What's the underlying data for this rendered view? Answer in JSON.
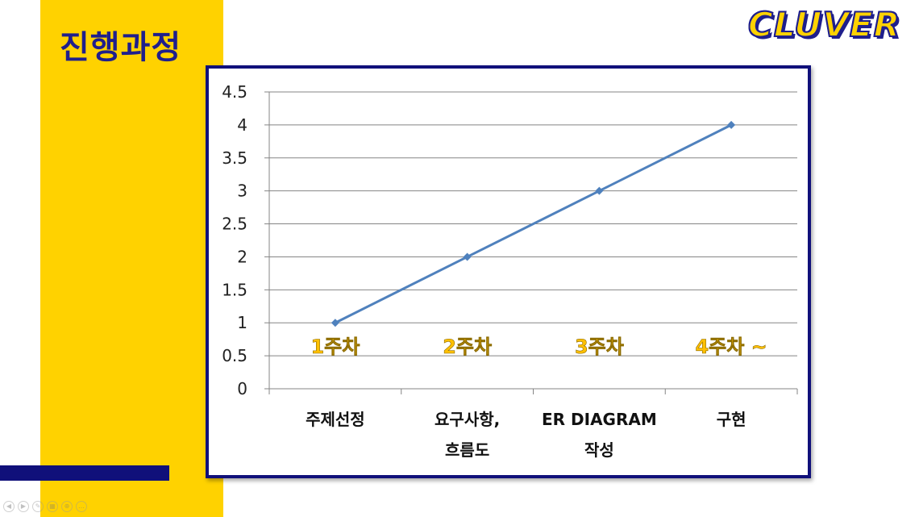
{
  "slide": {
    "title": "진행과정",
    "logo": "CLUVER"
  },
  "colors": {
    "accent_yellow": "#FFD200",
    "navy": "#10107A",
    "line": "#4F81BD",
    "week_label": "#FFC000"
  },
  "nav_icons": [
    "prev-icon",
    "next-icon",
    "pen-icon",
    "grid-icon",
    "zoom-icon",
    "more-icon"
  ],
  "chart_data": {
    "type": "line",
    "categories": [
      [
        "주제선정"
      ],
      [
        "요구사항,",
        "흐름도"
      ],
      [
        "ER DIAGRAM",
        "작성"
      ],
      [
        "구현"
      ]
    ],
    "series": [
      {
        "values": [
          1,
          2,
          3,
          4
        ]
      }
    ],
    "ylim": [
      0,
      4.5
    ],
    "yticks": [
      "0",
      "0.5",
      "1",
      "1.5",
      "2",
      "2.5",
      "3",
      "3.5",
      "4",
      "4.5"
    ],
    "grid": true,
    "legend": "none",
    "annotations": [
      "1주차",
      "2주차",
      "3주차",
      "4주차 ~"
    ]
  }
}
